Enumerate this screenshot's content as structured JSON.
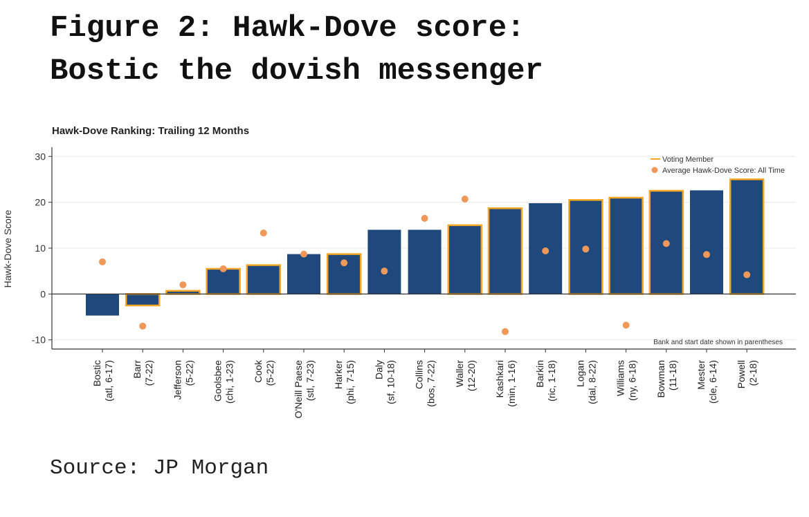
{
  "figure": {
    "title_line1": "Figure 2: Hawk-Dove score:",
    "title_line2": "Bostic the dovish messenger",
    "source": "Source: JP Morgan"
  },
  "chart_data": {
    "type": "bar",
    "title": "Hawk-Dove Ranking: Trailing 12 Months",
    "xlabel": "",
    "ylabel": "Hawk-Dove Score",
    "ylim": [
      -12,
      32
    ],
    "yticks": [
      -10,
      0,
      10,
      20,
      30
    ],
    "grid": true,
    "legend_position": "top-right",
    "note": "Bank and start date shown in parentheses",
    "categories": [
      {
        "name": "Bostic",
        "detail": "(atl, 6-17)"
      },
      {
        "name": "Barr",
        "detail": "(7-22)"
      },
      {
        "name": "Jefferson",
        "detail": "(5-22)"
      },
      {
        "name": "Goolsbee",
        "detail": "(chi, 1-23)"
      },
      {
        "name": "Cook",
        "detail": "(5-22)"
      },
      {
        "name": "O'Neill Paese",
        "detail": "(stl, 7-23)"
      },
      {
        "name": "Harker",
        "detail": "(phi, 7-15)"
      },
      {
        "name": "Daly",
        "detail": "(sf, 10-18)"
      },
      {
        "name": "Collins",
        "detail": "(bos, 7-22)"
      },
      {
        "name": "Waller",
        "detail": "(12-20)"
      },
      {
        "name": "Kashkari",
        "detail": "(min, 1-16)"
      },
      {
        "name": "Barkin",
        "detail": "(ric, 1-18)"
      },
      {
        "name": "Logan",
        "detail": "(dal, 8-22)"
      },
      {
        "name": "Williams",
        "detail": "(ny, 6-18)"
      },
      {
        "name": "Bowman",
        "detail": "(11-18)"
      },
      {
        "name": "Mester",
        "detail": "(cle, 6-14)"
      },
      {
        "name": "Powell",
        "detail": "(2-18)"
      }
    ],
    "series": [
      {
        "name": "Trailing 12 Months",
        "type": "bar",
        "values": [
          -4.7,
          -2.5,
          0.7,
          5.5,
          6.3,
          8.7,
          8.7,
          14.0,
          14.0,
          15.0,
          18.7,
          19.8,
          20.5,
          21.0,
          22.5,
          22.6,
          25.0
        ],
        "voting_member": [
          false,
          true,
          true,
          true,
          true,
          false,
          true,
          false,
          false,
          true,
          true,
          false,
          true,
          true,
          true,
          false,
          true
        ]
      },
      {
        "name": "Average Hawk-Dove Score: All Time",
        "type": "scatter",
        "values": [
          7.0,
          -7.0,
          2.0,
          5.5,
          13.3,
          8.7,
          6.8,
          5.0,
          16.5,
          20.7,
          -8.2,
          9.4,
          9.8,
          -6.8,
          11.0,
          8.6,
          4.2
        ]
      }
    ],
    "legend": [
      {
        "label": "Voting Member",
        "kind": "line"
      },
      {
        "label": "Average Hawk-Dove Score: All Time",
        "kind": "dot"
      }
    ],
    "colors": {
      "bar": "#1F497D",
      "voting_outline": "#F5A623",
      "dot": "#F0975A",
      "grid": "#E8E8E8",
      "axis": "#333333"
    }
  }
}
